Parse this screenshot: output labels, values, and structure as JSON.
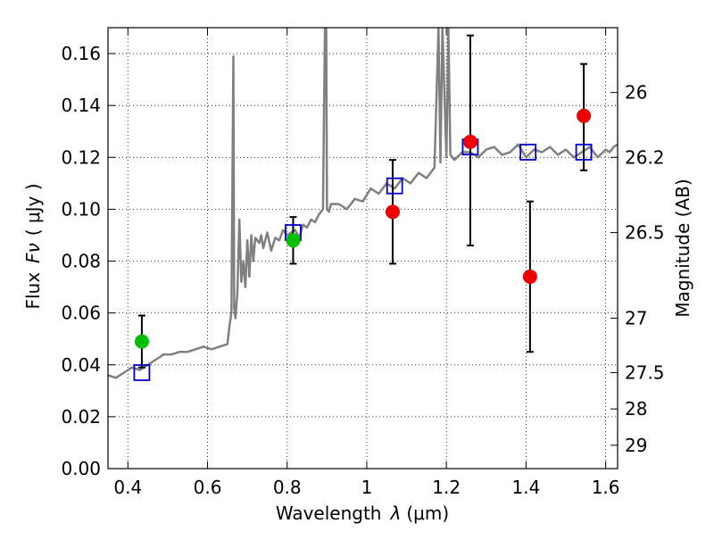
{
  "chart_data": {
    "type": "scatter",
    "xlabel": "Wavelength",
    "xlabel_symbol": "λ",
    "xlabel_unit": "(μm)",
    "ylabel": "Flux",
    "ylabel_symbol": "Fν",
    "ylabel_unit": "( μJy )",
    "y2label": "Magnitude (AB)",
    "xlim": [
      0.35,
      1.63
    ],
    "ylim": [
      0.0,
      0.17
    ],
    "x_ticks": [
      0.4,
      0.6,
      0.8,
      1.0,
      1.2,
      1.4,
      1.6
    ],
    "x_tick_labels": [
      "0.4",
      "0.6",
      "0.8",
      "1",
      "1.2",
      "1.4",
      "1.6"
    ],
    "y_ticks": [
      0.0,
      0.02,
      0.04,
      0.06,
      0.08,
      0.1,
      0.12,
      0.14,
      0.16
    ],
    "y_tick_labels": [
      "0.00",
      "0.02",
      "0.04",
      "0.06",
      "0.08",
      "0.10",
      "0.12",
      "0.14",
      "0.16"
    ],
    "y2_ticks": [
      {
        "label": "26",
        "flux": 0.145
      },
      {
        "label": "26.2",
        "flux": 0.12
      },
      {
        "label": "26.5",
        "flux": 0.091
      },
      {
        "label": "27",
        "flux": 0.058
      },
      {
        "label": "27.5",
        "flux": 0.037
      },
      {
        "label": "28",
        "flux": 0.023
      },
      {
        "label": "29",
        "flux": 0.009
      }
    ],
    "grid": true,
    "colors": {
      "model": "#808080",
      "green": "#00c000",
      "red": "#ee0000",
      "blue": "#0000cc",
      "errorbar": "#000000"
    },
    "model_spectrum": {
      "x": [
        0.35,
        0.37,
        0.39,
        0.41,
        0.43,
        0.45,
        0.47,
        0.49,
        0.51,
        0.53,
        0.55,
        0.57,
        0.59,
        0.61,
        0.63,
        0.65,
        0.655,
        0.66,
        0.665,
        0.667,
        0.67,
        0.675,
        0.68,
        0.685,
        0.69,
        0.695,
        0.7,
        0.705,
        0.71,
        0.715,
        0.72,
        0.73,
        0.735,
        0.74,
        0.75,
        0.76,
        0.77,
        0.78,
        0.79,
        0.8,
        0.81,
        0.82,
        0.83,
        0.84,
        0.85,
        0.86,
        0.87,
        0.88,
        0.89,
        0.895,
        0.898,
        0.9,
        0.905,
        0.91,
        0.93,
        0.95,
        0.97,
        0.99,
        1.01,
        1.03,
        1.05,
        1.07,
        1.09,
        1.11,
        1.13,
        1.15,
        1.17,
        1.18,
        1.185,
        1.19,
        1.2,
        1.205,
        1.21,
        1.22,
        1.24,
        1.26,
        1.28,
        1.3,
        1.32,
        1.34,
        1.36,
        1.38,
        1.4,
        1.42,
        1.44,
        1.46,
        1.48,
        1.5,
        1.52,
        1.54,
        1.56,
        1.58,
        1.6,
        1.61,
        1.62,
        1.63
      ],
      "y": [
        0.036,
        0.035,
        0.037,
        0.039,
        0.038,
        0.04,
        0.042,
        0.044,
        0.044,
        0.045,
        0.045,
        0.046,
        0.047,
        0.046,
        0.047,
        0.048,
        0.055,
        0.06,
        0.159,
        0.062,
        0.058,
        0.068,
        0.096,
        0.072,
        0.08,
        0.07,
        0.088,
        0.074,
        0.09,
        0.08,
        0.089,
        0.087,
        0.09,
        0.085,
        0.091,
        0.084,
        0.089,
        0.088,
        0.092,
        0.09,
        0.091,
        0.092,
        0.089,
        0.094,
        0.093,
        0.096,
        0.095,
        0.098,
        0.1,
        0.17,
        0.17,
        0.1,
        0.099,
        0.102,
        0.102,
        0.1,
        0.104,
        0.103,
        0.108,
        0.106,
        0.11,
        0.108,
        0.112,
        0.11,
        0.114,
        0.112,
        0.116,
        0.17,
        0.118,
        0.17,
        0.12,
        0.17,
        0.121,
        0.119,
        0.122,
        0.122,
        0.12,
        0.123,
        0.124,
        0.121,
        0.122,
        0.125,
        0.12,
        0.123,
        0.122,
        0.124,
        0.121,
        0.123,
        0.12,
        0.122,
        0.124,
        0.12,
        0.123,
        0.122,
        0.124,
        0.125
      ]
    },
    "green_points": [
      {
        "x": 0.435,
        "y": 0.049,
        "yerr_low": 0.039,
        "yerr_high": 0.059
      },
      {
        "x": 0.815,
        "y": 0.088,
        "yerr_low": 0.079,
        "yerr_high": 0.097
      }
    ],
    "red_points": [
      {
        "x": 1.065,
        "y": 0.099,
        "yerr_low": 0.079,
        "yerr_high": 0.119
      },
      {
        "x": 1.26,
        "y": 0.126,
        "yerr_low": 0.086,
        "yerr_high": 0.167
      },
      {
        "x": 1.41,
        "y": 0.074,
        "yerr_low": 0.045,
        "yerr_high": 0.103
      },
      {
        "x": 1.545,
        "y": 0.136,
        "yerr_low": 0.115,
        "yerr_high": 0.156
      }
    ],
    "blue_squares": [
      {
        "x": 0.435,
        "y": 0.037
      },
      {
        "x": 0.815,
        "y": 0.091
      },
      {
        "x": 1.07,
        "y": 0.109
      },
      {
        "x": 1.26,
        "y": 0.124
      },
      {
        "x": 1.405,
        "y": 0.122
      },
      {
        "x": 1.545,
        "y": 0.122
      }
    ]
  }
}
